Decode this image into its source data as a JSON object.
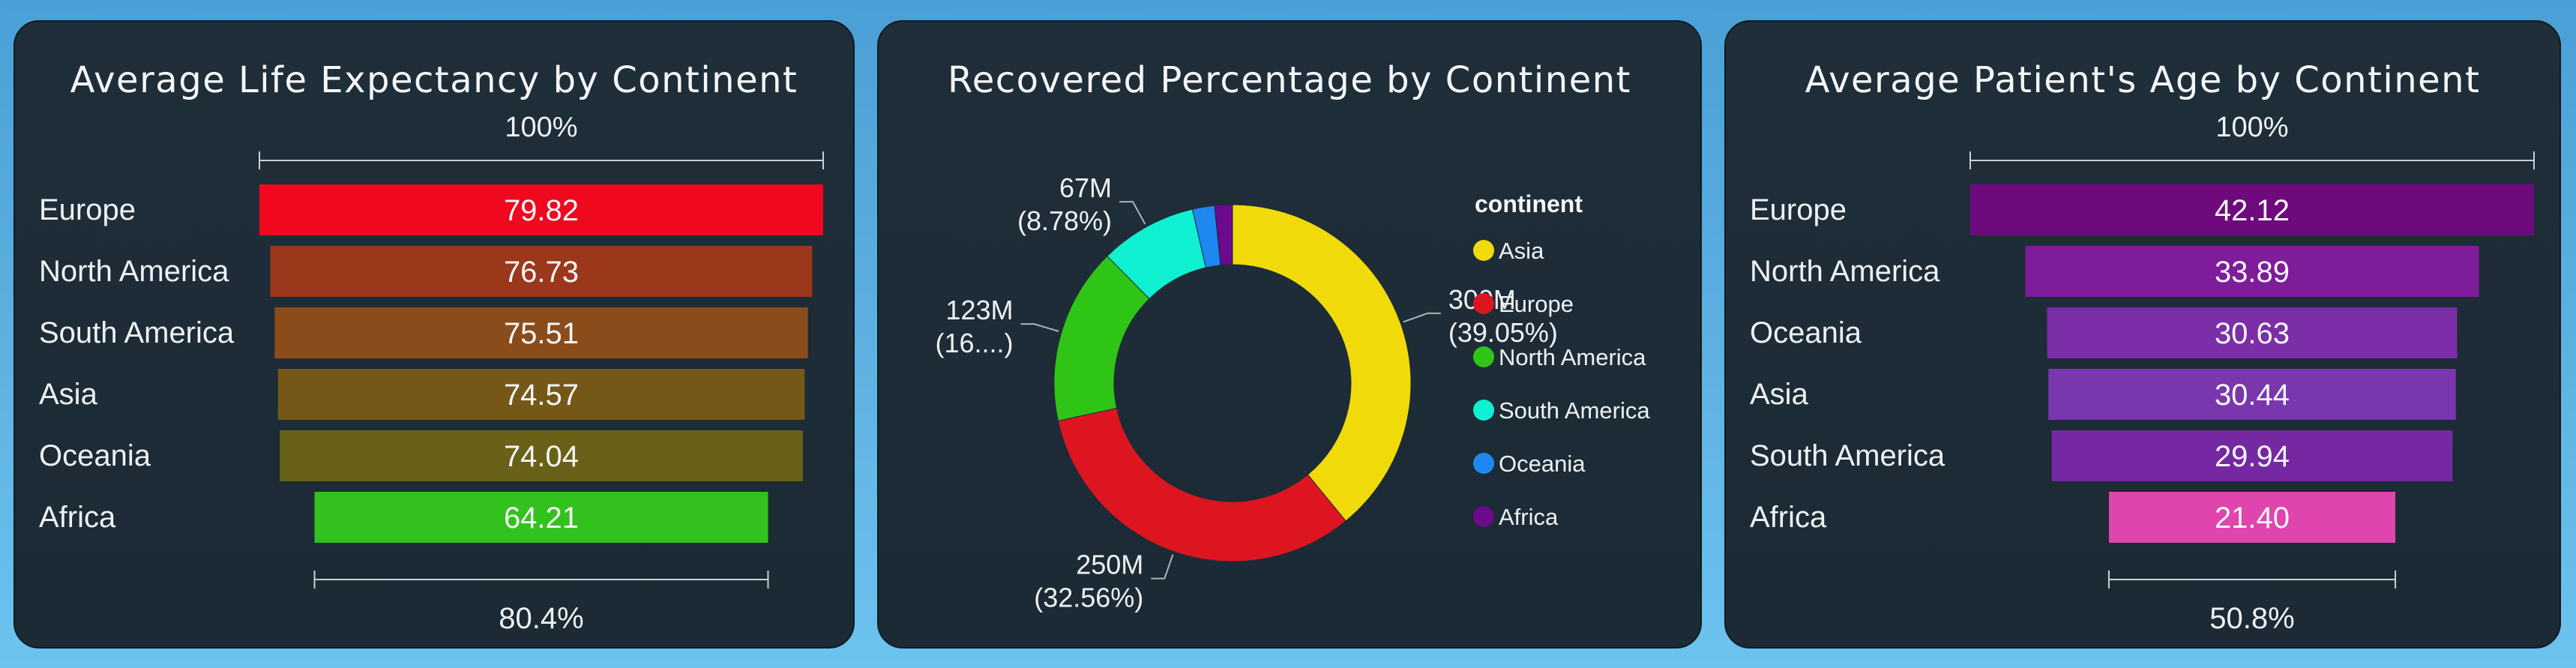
{
  "chart_data": [
    {
      "type": "funnel",
      "title": "Average Life Expectancy by Continent",
      "categories": [
        "Europe",
        "North America",
        "South America",
        "Asia",
        "Oceania",
        "Africa"
      ],
      "values": [
        79.82,
        76.73,
        75.51,
        74.57,
        74.04,
        64.21
      ],
      "value_labels": [
        "79.82",
        "76.73",
        "75.51",
        "74.57",
        "74.04",
        "64.21"
      ],
      "colors": [
        "#f0081f",
        "#9b381c",
        "#8a4c1a",
        "#755818",
        "#6a6118",
        "#33c21d"
      ],
      "top_label": "100%",
      "bottom_label": "80.4%"
    },
    {
      "type": "pie",
      "title": "Recovered Percentage by Continent",
      "legend_title": "continent",
      "legend_position": "right",
      "donut": true,
      "categories": [
        "Asia",
        "Europe",
        "North America",
        "South America",
        "Oceania",
        "Africa"
      ],
      "values": [
        39.05,
        32.56,
        16.0,
        8.78,
        2.0,
        1.61
      ],
      "colors": [
        "#f0da0a",
        "#dc1520",
        "#2ec516",
        "#0ff0d2",
        "#1e88f0",
        "#6b0a8c"
      ],
      "data_labels": [
        {
          "category": "Asia",
          "lines": [
            "300M",
            "(39.05%)"
          ]
        },
        {
          "category": "Europe",
          "lines": [
            "250M",
            "(32.56%)"
          ]
        },
        {
          "category": "North America",
          "lines": [
            "123M",
            "(16....)"
          ]
        },
        {
          "category": "South America",
          "lines": [
            "67M",
            "(8.78%)"
          ]
        }
      ]
    },
    {
      "type": "funnel",
      "title": "Average Patient's Age by Continent",
      "categories": [
        "Europe",
        "North America",
        "Oceania",
        "Asia",
        "South America",
        "Africa"
      ],
      "values": [
        42.12,
        33.89,
        30.63,
        30.44,
        29.94,
        21.4
      ],
      "value_labels": [
        "42.12",
        "33.89",
        "30.63",
        "30.44",
        "29.94",
        "21.40"
      ],
      "colors": [
        "#6e0a7c",
        "#7e1c9a",
        "#7b2ea8",
        "#7a36ad",
        "#7528a2",
        "#e045ad"
      ],
      "top_label": "100%",
      "bottom_label": "50.8%"
    }
  ]
}
